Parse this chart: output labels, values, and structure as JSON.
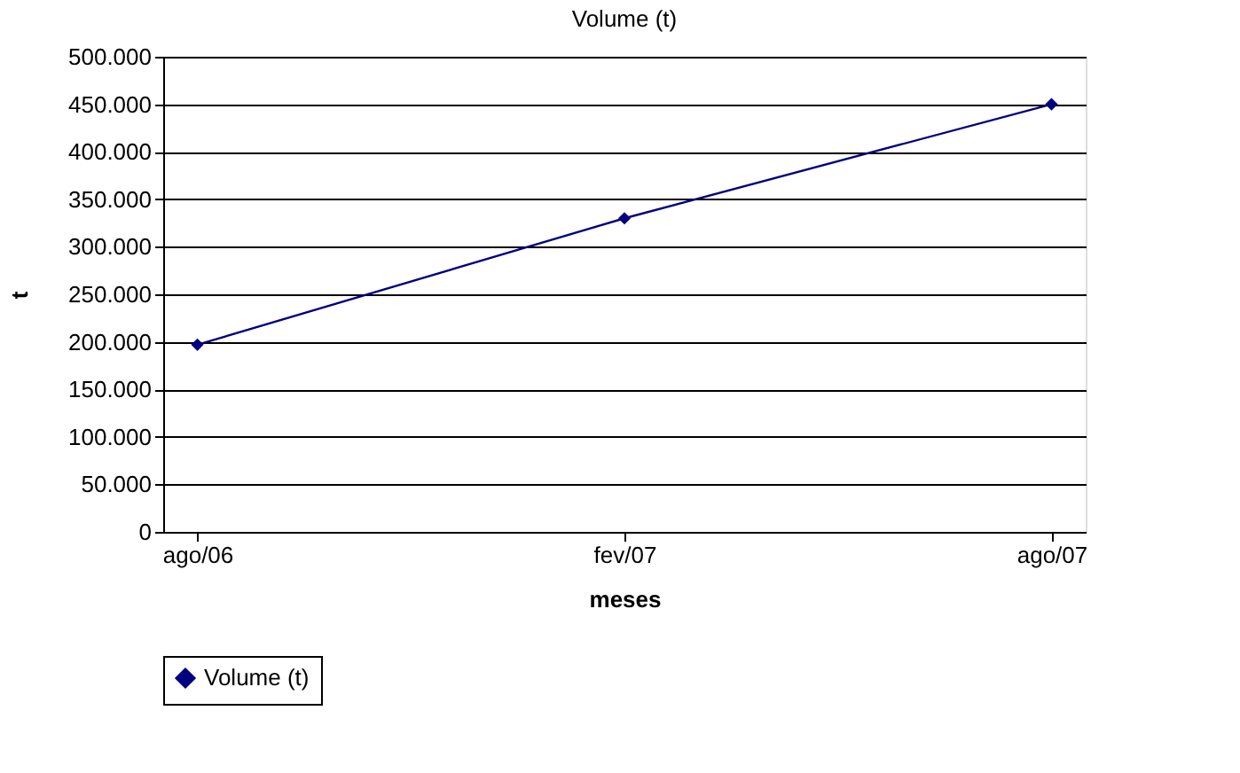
{
  "chart_data": {
    "type": "line",
    "title": "Volume (t)",
    "xlabel": "meses",
    "ylabel": "t",
    "categories": [
      "ago/06",
      "fev/07",
      "ago/07"
    ],
    "series": [
      {
        "name": "Volume (t)",
        "color": "#000080",
        "values": [
          197000,
          330000,
          450000
        ]
      }
    ],
    "ylim": [
      0,
      500000
    ],
    "yticks": [
      {
        "value": 0,
        "label": "0"
      },
      {
        "value": 50000,
        "label": "50.000"
      },
      {
        "value": 100000,
        "label": "100.000"
      },
      {
        "value": 150000,
        "label": "150.000"
      },
      {
        "value": 200000,
        "label": "200.000"
      },
      {
        "value": 250000,
        "label": "250.000"
      },
      {
        "value": 300000,
        "label": "300.000"
      },
      {
        "value": 350000,
        "label": "350.000"
      },
      {
        "value": 400000,
        "label": "400.000"
      },
      {
        "value": 450000,
        "label": "450.000"
      },
      {
        "value": 500000,
        "label": "500.000"
      }
    ],
    "grid": "y",
    "legend": "bottom",
    "marker": "diamond",
    "line_style": "solid"
  }
}
